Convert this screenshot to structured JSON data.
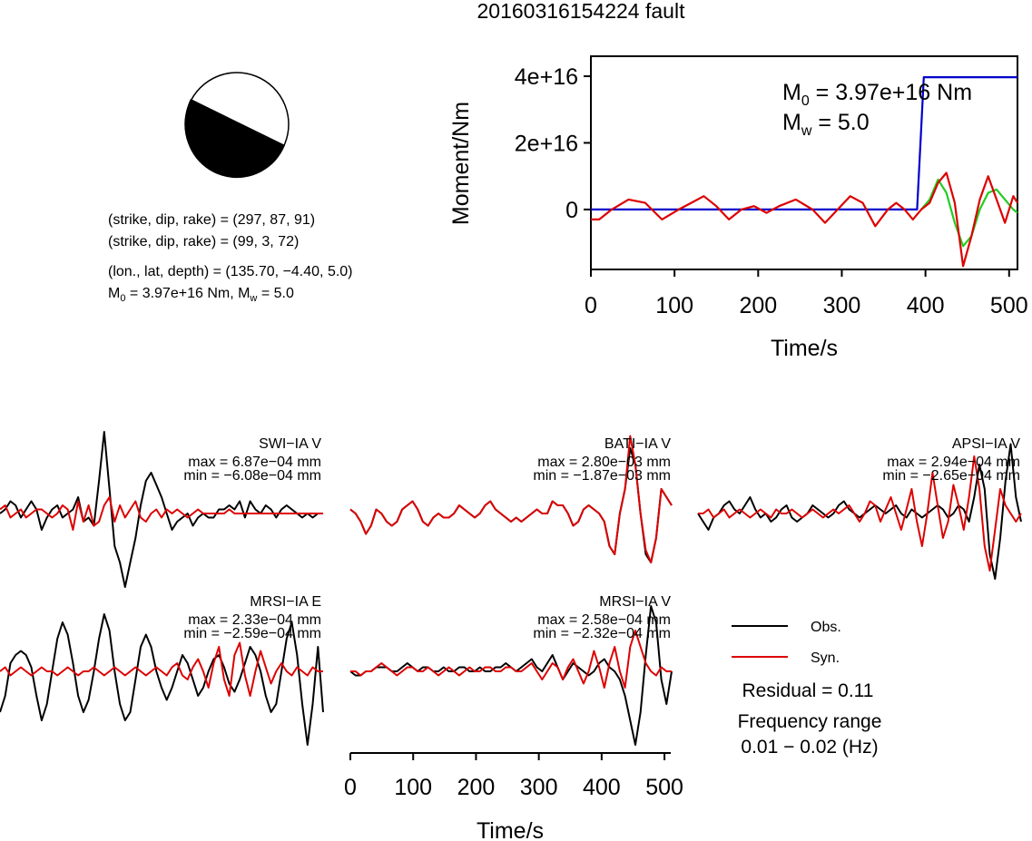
{
  "title": "20160316154224 fault",
  "mechanism": {
    "line1": "(strike, dip, rake) = (297, 87, 91)",
    "line2": "(strike, dip, rake) = (99, 3, 72)",
    "line3": "(lon., lat, depth) = (135.70, −4.40, 5.0)",
    "m0_prefix": "M",
    "m0_sub": "0",
    "m0_rest": " = 3.97e+16 Nm, M",
    "mw_sub": "w",
    "mw_rest": " = 5.0"
  },
  "chart_data": [
    {
      "type": "line",
      "title": "",
      "xlabel": "Time/s",
      "ylabel": "Moment/Nm",
      "xlim": [
        0,
        510
      ],
      "ylim": [
        -1.8e+16,
        4.6e+16
      ],
      "xticks": [
        0,
        100,
        200,
        300,
        400,
        500
      ],
      "xtick_labels": [
        "0",
        "100",
        "200",
        "300",
        "400",
        "500"
      ],
      "yticks": [
        0,
        2e+16,
        4e+16
      ],
      "ytick_labels": [
        "0",
        "2e+16",
        "4e+16"
      ],
      "annotation": {
        "m0_sym": "M",
        "m0_sub": "0",
        "m0_text": " = 3.97e+16 Nm",
        "mw_sym": "M",
        "mw_sub": "w",
        "mw_text": " = 5.0"
      },
      "series": [
        {
          "color": "#0000cc",
          "x": [
            0,
            390,
            398,
            510
          ],
          "y": [
            0,
            0,
            3.97e+16,
            3.97e+16
          ]
        },
        {
          "color": "#22cc22",
          "x": [
            395,
            405,
            415,
            425,
            435,
            445,
            455,
            465,
            475,
            485,
            495,
            505,
            510
          ],
          "y": [
            0,
            3000000000000000.0,
            9000000000000000.0,
            5000000000000000.0,
            -4000000000000000.0,
            -1.1e+16,
            -8000000000000000.0,
            0,
            5000000000000000.0,
            6000000000000000.0,
            3000000000000000.0,
            0,
            -1000000000000000.0
          ]
        },
        {
          "color": "#dd0000",
          "x": [
            0,
            10,
            25,
            45,
            65,
            85,
            105,
            120,
            135,
            150,
            165,
            180,
            195,
            210,
            225,
            245,
            265,
            280,
            295,
            310,
            325,
            340,
            355,
            365,
            375,
            385,
            395,
            405,
            415,
            425,
            435,
            445,
            455,
            465,
            475,
            485,
            495,
            505,
            510
          ],
          "y": [
            -3000000000000000.0,
            -3000000000000000.0,
            0,
            3000000000000000.0,
            2000000000000000.0,
            -3000000000000000.0,
            0,
            2000000000000000.0,
            4000000000000000.0,
            1000000000000000.0,
            -3000000000000000.0,
            0,
            1000000000000000.0,
            -1000000000000000.0,
            1000000000000000.0,
            3000000000000000.0,
            0,
            -4000000000000000.0,
            0,
            4000000000000000.0,
            2000000000000000.0,
            -5000000000000000.0,
            0,
            2000000000000000.0,
            0,
            -3000000000000000.0,
            0,
            2000000000000000.0,
            8000000000000000.0,
            1.1e+16,
            2000000000000000.0,
            -1.7e+16,
            -8000000000000000.0,
            3000000000000000.0,
            1e+16,
            3000000000000000.0,
            -4000000000000000.0,
            4000000000000000.0,
            2000000000000000.0
          ]
        }
      ]
    },
    {
      "type": "line",
      "title": "",
      "xlabel": "Time/s",
      "ylabel": "",
      "xlim": [
        0,
        510
      ],
      "xticks": [
        0,
        100,
        200,
        300,
        400,
        500
      ],
      "xtick_labels": [
        "0",
        "100",
        "200",
        "300",
        "400",
        "500"
      ],
      "panels": [
        {
          "label": "SWI−IA V",
          "max": "max = 6.87e−04 mm",
          "min": "min = −6.08e−04 mm",
          "obs": [
            0,
            0.05,
            0.15,
            0.1,
            -0.05,
            0.05,
            0.15,
            0.05,
            -0.2,
            -0.05,
            0.05,
            0.1,
            -0.05,
            0,
            0.05,
            0.2,
            -0.1,
            -0.05,
            -0.15,
            0.4,
            1.0,
            0.3,
            -0.4,
            -0.6,
            -0.9,
            -0.6,
            -0.3,
            0.1,
            0.4,
            0.5,
            0.35,
            0.2,
            0,
            -0.2,
            -0.1,
            -0.05,
            0,
            -0.15,
            -0.05,
            0,
            -0.05,
            -0.05,
            0.05,
            0.05,
            0.1,
            0.05,
            0.15,
            -0.05,
            0.15,
            0.05,
            0,
            0.1,
            0.05,
            -0.05,
            0.05,
            0.1,
            0.05,
            0,
            -0.05,
            0,
            -0.05,
            0,
            0
          ],
          "syn": [
            0.05,
            0.1,
            -0.05,
            0,
            0.05,
            -0.05,
            0,
            0.05,
            0.05,
            0,
            -0.05,
            0,
            0.1,
            0.05,
            -0.2,
            0.15,
            -0.1,
            0.1,
            -0.15,
            -0.1,
            0.1,
            0.2,
            -0.1,
            0.1,
            -0.05,
            0.05,
            0.15,
            -0.05,
            -0.1,
            0,
            0.05,
            -0.05,
            0.05,
            0,
            0.05,
            0,
            -0.05,
            0,
            0.05,
            0,
            0,
            0,
            0,
            0,
            0.05,
            0,
            0,
            0,
            0,
            0,
            0,
            0,
            0,
            0,
            0,
            0,
            0,
            0,
            0,
            0,
            0,
            0,
            0
          ]
        },
        {
          "label": "BATI−IA V",
          "max": "max = 2.80e−03 mm",
          "min": "min = −1.87e−03 mm",
          "obs": [
            0.05,
            0,
            -0.1,
            -0.25,
            -0.15,
            0.05,
            0,
            -0.1,
            -0.15,
            -0.1,
            0.05,
            0.1,
            0.15,
            0.05,
            -0.1,
            -0.15,
            -0.05,
            0,
            -0.05,
            -0.05,
            0,
            0.1,
            0.05,
            0,
            -0.05,
            0,
            0.1,
            0.15,
            0.05,
            0,
            -0.05,
            -0.1,
            -0.05,
            -0.1,
            -0.05,
            0,
            0.05,
            0,
            0,
            0.15,
            0.1,
            0.1,
            0,
            -0.15,
            -0.1,
            0.05,
            0.1,
            0.05,
            0,
            -0.1,
            -0.4,
            -0.5,
            0,
            0.3,
            0.8,
            0.6,
            0,
            -0.5,
            -0.6,
            -0.3,
            0.3,
            0.2,
            0.1
          ],
          "syn": [
            0.05,
            0,
            -0.1,
            -0.25,
            -0.15,
            0.05,
            0,
            -0.1,
            -0.15,
            -0.1,
            0.05,
            0.1,
            0.15,
            0.05,
            -0.1,
            -0.15,
            -0.05,
            0,
            -0.05,
            -0.05,
            0,
            0.1,
            0.05,
            0,
            -0.05,
            0,
            0.1,
            0.15,
            0.05,
            0,
            -0.05,
            -0.1,
            -0.05,
            -0.1,
            -0.05,
            0,
            0.05,
            0,
            0,
            0.15,
            0.1,
            0.1,
            0,
            -0.15,
            -0.1,
            0.05,
            0.1,
            0.05,
            0,
            -0.1,
            -0.4,
            -0.5,
            0,
            0.3,
            0.95,
            0.6,
            0,
            -0.45,
            -0.6,
            -0.3,
            0.3,
            0.2,
            0.1
          ]
        },
        {
          "label": "APSI−IA V",
          "max": "max = 2.94e−04 mm",
          "min": "min = −2.65e−04 mm",
          "obs": [
            0,
            -0.1,
            -0.2,
            -0.05,
            0,
            0.1,
            0.15,
            0.05,
            0,
            0.1,
            0.2,
            0.05,
            -0.05,
            0,
            -0.1,
            -0.05,
            0.05,
            0.1,
            -0.05,
            -0.1,
            -0.05,
            0,
            0.1,
            0.05,
            0,
            -0.05,
            0,
            0.1,
            0.15,
            0.05,
            0,
            -0.05,
            0,
            0.05,
            0.1,
            0.05,
            0,
            0.05,
            0.1,
            0,
            -0.05,
            0.05,
            0,
            -0.05,
            0,
            0.05,
            0.1,
            0.05,
            -0.05,
            0,
            0.1,
            0.05,
            -0.1,
            0.2,
            0.6,
            0.3,
            -0.5,
            -0.8,
            -0.3,
            0.4,
            0.85,
            0.2,
            -0.1
          ],
          "syn": [
            0,
            0,
            0.05,
            -0.05,
            0,
            0.05,
            -0.05,
            0,
            0.05,
            0,
            -0.05,
            0,
            0.05,
            0,
            -0.05,
            0.05,
            0,
            0,
            0.05,
            0,
            -0.05,
            0,
            0.05,
            0,
            -0.05,
            0,
            0.05,
            0,
            0.05,
            0.1,
            0,
            -0.1,
            0,
            0.15,
            0.1,
            -0.1,
            0.05,
            0.2,
            0,
            -0.2,
            0.05,
            0.3,
            -0.1,
            -0.4,
            0,
            0.5,
            0.1,
            -0.3,
            -0.1,
            0.35,
            0.1,
            -0.2,
            0.2,
            0.7,
            0.3,
            -0.4,
            -0.7,
            -0.2,
            0.3,
            0.1,
            0,
            -0.1,
            0
          ]
        },
        {
          "label": "MRSI−IA E",
          "max": "max = 2.33e−04 mm",
          "min": "min = −2.59e−04 mm",
          "obs": [
            -0.5,
            -0.3,
            0.1,
            0.2,
            0.25,
            0.2,
            0.05,
            -0.3,
            -0.6,
            -0.4,
            0,
            0.4,
            0.6,
            0.45,
            0.1,
            -0.3,
            -0.5,
            -0.35,
            0,
            0.4,
            0.7,
            0.5,
            0,
            -0.4,
            -0.6,
            -0.5,
            -0.1,
            0.3,
            0.45,
            0.3,
            0,
            -0.2,
            -0.35,
            -0.2,
            0,
            0.2,
            0.1,
            -0.1,
            -0.3,
            -0.2,
            0,
            0.15,
            0.2,
            0.05,
            -0.15,
            -0.25,
            -0.1,
            0.1,
            0.3,
            0.2,
            0,
            -0.3,
            -0.5,
            -0.4,
            0,
            0.4,
            0.6,
            0.2,
            -0.4,
            -0.9,
            -0.4,
            0.3,
            -0.5
          ],
          "syn": [
            0,
            0.05,
            -0.05,
            0,
            0.05,
            0,
            -0.05,
            0,
            0.05,
            0,
            0,
            -0.05,
            0,
            0.05,
            0,
            -0.05,
            0,
            0,
            0.05,
            0,
            -0.05,
            0,
            0.05,
            0,
            -0.05,
            0,
            0.05,
            0,
            -0.05,
            0,
            0.05,
            0,
            -0.05,
            0.05,
            0.1,
            -0.05,
            -0.1,
            0.05,
            0.15,
            0,
            -0.2,
            0.1,
            0.3,
            -0.1,
            -0.3,
            0.2,
            0.35,
            -0.05,
            -0.3,
            0,
            0.25,
            0.05,
            -0.15,
            0,
            0.1,
            0,
            -0.05,
            0.05,
            0,
            -0.05,
            0.05,
            0,
            0
          ],
          "clip_max": 0.75
        },
        {
          "label": "MRSI−IA V",
          "max": "max = 2.58e−04 mm",
          "min": "min = −2.32e−04 mm",
          "obs": [
            0,
            -0.05,
            -0.05,
            0,
            0,
            0.05,
            0.05,
            0.05,
            0,
            0,
            0.05,
            0.1,
            0.05,
            0,
            0.05,
            0.05,
            0,
            0,
            0.05,
            0,
            0,
            0.05,
            0.05,
            0,
            0,
            0.05,
            0,
            0,
            0.05,
            0.05,
            0.1,
            0.05,
            0,
            0.05,
            0.1,
            0.15,
            0.05,
            0,
            0.1,
            0.2,
            0.05,
            -0.1,
            0,
            0.1,
            0.05,
            0,
            -0.05,
            0,
            0.1,
            0.15,
            0.05,
            0,
            -0.1,
            -0.3,
            -0.6,
            -0.9,
            -0.5,
            0.2,
            0.8,
            0.6,
            -0.1,
            -0.4,
            0
          ],
          "syn": [
            0,
            0,
            -0.05,
            0,
            0,
            0.05,
            0.1,
            0.05,
            0,
            -0.05,
            0,
            0.05,
            0.05,
            0,
            0,
            0.05,
            0,
            -0.05,
            0,
            0.05,
            0,
            -0.05,
            0,
            0.05,
            0,
            0,
            0.05,
            0.05,
            0,
            0,
            0.05,
            0.05,
            0,
            0,
            0.05,
            0.1,
            0,
            -0.1,
            0,
            0.1,
            0.05,
            -0.1,
            0.05,
            0.15,
            0,
            -0.15,
            0,
            0.25,
            0.05,
            -0.2,
            0.1,
            0.3,
            0,
            -0.2,
            0.3,
            0.5,
            0.3,
            0.1,
            0,
            -0.05,
            0.05,
            0,
            0
          ]
        }
      ],
      "legend": {
        "obs_label": "Obs.",
        "syn_label": "Syn.",
        "obs_color": "#000000",
        "syn_color": "#dd0000"
      },
      "residual": "Residual = 0.11",
      "freq_title": "Frequency range",
      "freq_value": "0.01 − 0.02 (Hz)"
    }
  ]
}
